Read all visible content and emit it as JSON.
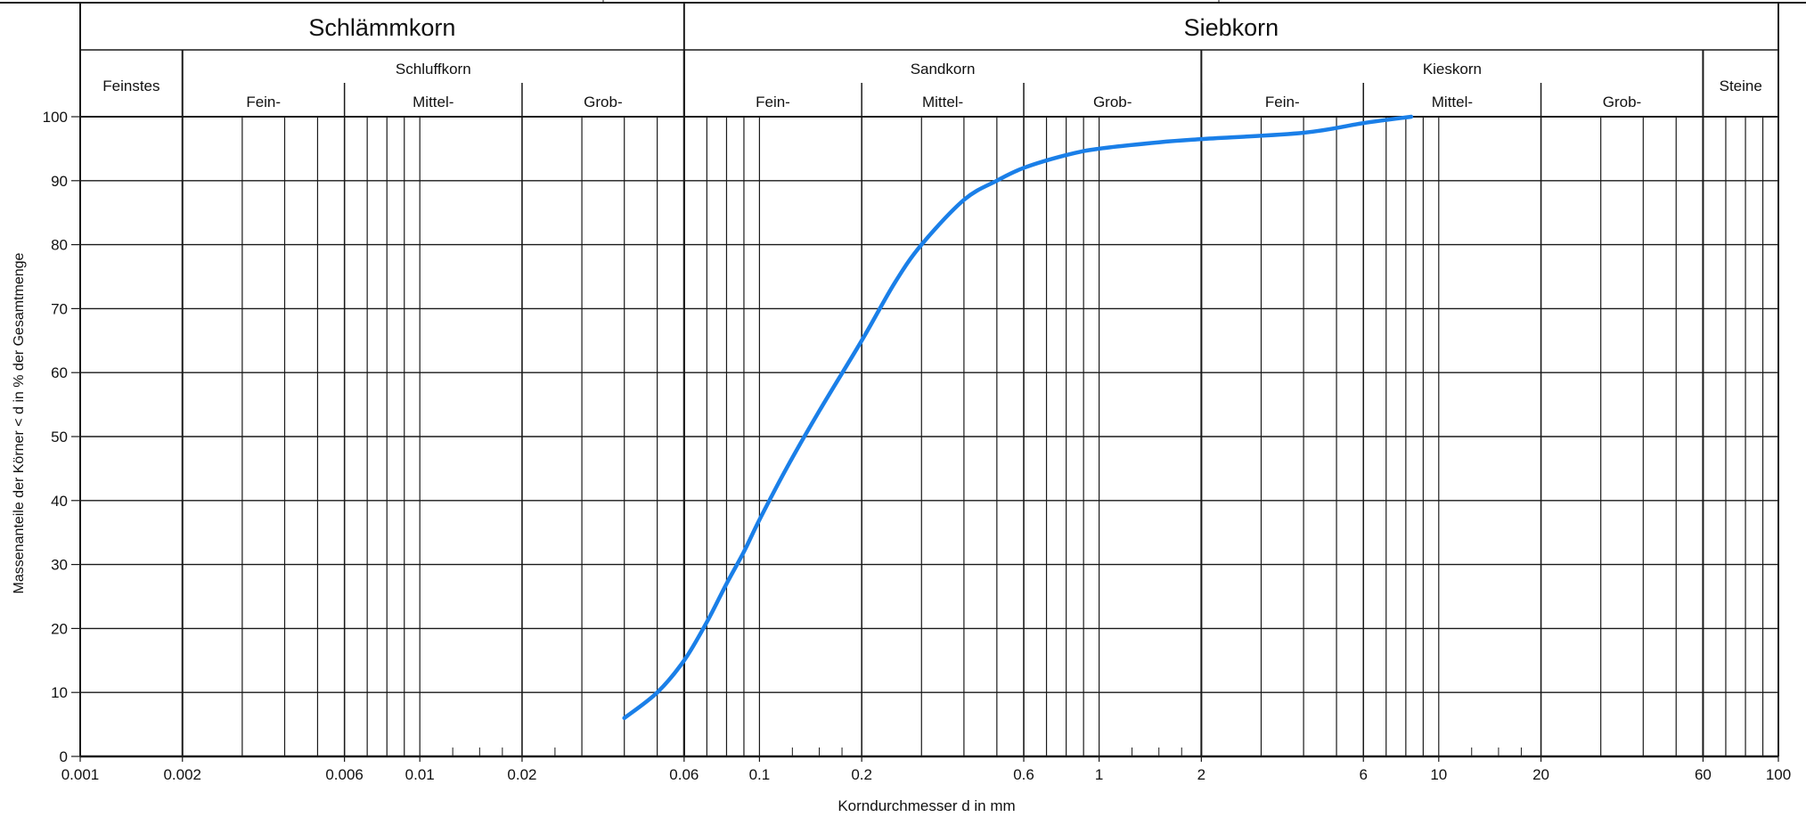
{
  "chart_data": {
    "type": "line",
    "title": "",
    "xlabel": "Korndurchmesser d in mm",
    "ylabel": "Massenanteile der Körner < d in % der Gesamtmenge",
    "x_scale": "log",
    "xlim": [
      0.001,
      100
    ],
    "ylim": [
      0,
      100
    ],
    "grid": true,
    "x_ticks": [
      0.001,
      0.002,
      0.006,
      0.01,
      0.02,
      0.06,
      0.1,
      0.2,
      0.6,
      1,
      2,
      6,
      10,
      20,
      60,
      100
    ],
    "x_tick_labels": [
      "0.001",
      "0.002",
      "0.006",
      "0.01",
      "0.02",
      "0.06",
      "0.1",
      "0.2",
      "0.6",
      "1",
      "2",
      "6",
      "10",
      "20",
      "60",
      "100"
    ],
    "y_ticks": [
      0,
      10,
      20,
      30,
      40,
      50,
      60,
      70,
      80,
      90,
      100
    ],
    "y_tick_labels": [
      "0",
      "10",
      "20",
      "30",
      "40",
      "50",
      "60",
      "70",
      "80",
      "90",
      "100"
    ],
    "soil_classes": {
      "top": [
        {
          "label": "Schlämmkorn",
          "from": 0.001,
          "to": 0.06
        },
        {
          "label": "Siebkorn",
          "from": 0.06,
          "to": 100
        }
      ],
      "groups": [
        {
          "label": "Feinstes",
          "from": 0.001,
          "to": 0.002
        },
        {
          "label": "Schluffkorn",
          "from": 0.002,
          "to": 0.06
        },
        {
          "label": "Sandkorn",
          "from": 0.06,
          "to": 2
        },
        {
          "label": "Kieskorn",
          "from": 2,
          "to": 60
        },
        {
          "label": "Steine",
          "from": 60,
          "to": 100
        }
      ],
      "subgroups": [
        {
          "label": "Fein-",
          "from": 0.002,
          "to": 0.006
        },
        {
          "label": "Mittel-",
          "from": 0.006,
          "to": 0.02
        },
        {
          "label": "Grob-",
          "from": 0.02,
          "to": 0.06
        },
        {
          "label": "Fein-",
          "from": 0.06,
          "to": 0.2
        },
        {
          "label": "Mittel-",
          "from": 0.2,
          "to": 0.6
        },
        {
          "label": "Grob-",
          "from": 0.6,
          "to": 2
        },
        {
          "label": "Fein-",
          "from": 2,
          "to": 6
        },
        {
          "label": "Mittel-",
          "from": 6,
          "to": 20
        },
        {
          "label": "Grob-",
          "from": 20,
          "to": 60
        }
      ]
    },
    "series": [
      {
        "color": "#1a7fe8",
        "x": [
          0.04,
          0.05,
          0.06,
          0.07,
          0.08,
          0.09,
          0.1,
          0.12,
          0.15,
          0.2,
          0.25,
          0.3,
          0.4,
          0.5,
          0.6,
          0.8,
          1,
          1.5,
          2,
          4,
          6,
          8.3
        ],
        "y": [
          6,
          10,
          15,
          21,
          27,
          32,
          37,
          45,
          54,
          65,
          74,
          80,
          87,
          90,
          92,
          94,
          95,
          96,
          96.5,
          97.5,
          99,
          100
        ]
      }
    ]
  },
  "colors": {
    "curve": "#1a7fe8",
    "grid": "#1a1a1a",
    "text": "#111111"
  }
}
